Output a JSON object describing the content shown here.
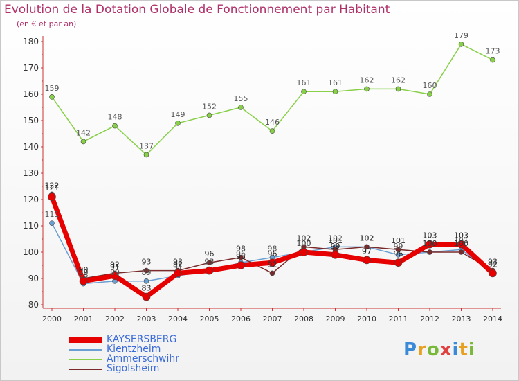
{
  "title": "Evolution de la Dotation Globale de Fonctionnement par Habitant",
  "subtitle": "(en € et par an)",
  "logo_text": "Proxiti",
  "chart_data": {
    "type": "line",
    "x": [
      "2000",
      "2001",
      "2002",
      "2003",
      "2004",
      "2005",
      "2006",
      "2007",
      "2008",
      "2009",
      "2010",
      "2011",
      "2012",
      "2013",
      "2014"
    ],
    "ylim": [
      80,
      180
    ],
    "yticks": [
      80,
      90,
      100,
      110,
      120,
      130,
      140,
      150,
      160,
      170,
      180
    ],
    "grid": false,
    "legend_position": "bottom-left",
    "series": [
      {
        "name": "KAYSERSBERG",
        "color": "#e60000",
        "values": [
          121,
          89,
          91,
          83,
          92,
          93,
          95,
          96,
          100,
          99,
          97,
          96,
          103,
          103,
          92
        ]
      },
      {
        "name": "Kientzheim",
        "color": "#6a9fd4",
        "values": [
          111,
          88,
          89,
          89,
          91,
          93,
          96,
          98,
          100,
          102,
          102,
          99,
          100,
          101,
          92
        ]
      },
      {
        "name": "Ammerschwihr",
        "color": "#88d048",
        "values": [
          159,
          142,
          148,
          137,
          149,
          152,
          155,
          146,
          161,
          161,
          162,
          162,
          160,
          179,
          173
        ]
      },
      {
        "name": "Sigolsheim",
        "color": "#7a2a2a",
        "values": [
          122,
          90,
          92,
          93,
          93,
          96,
          98,
          92,
          102,
          101,
          102,
          101,
          100,
          100,
          93
        ]
      }
    ]
  }
}
